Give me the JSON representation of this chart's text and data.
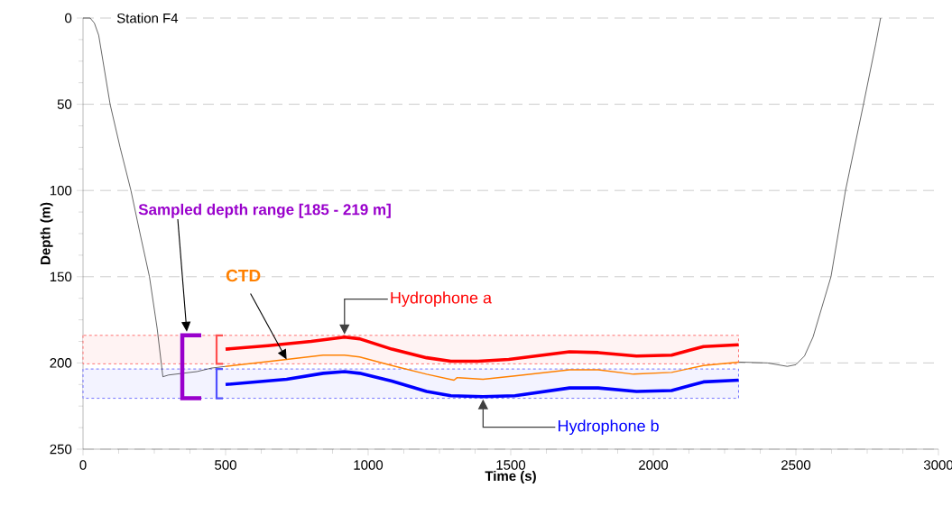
{
  "chart_data": {
    "type": "line",
    "xlabel": "Time (s)",
    "ylabel": "Depth (m)",
    "xlim": [
      0,
      3000
    ],
    "ylim": [
      250,
      0
    ],
    "xticks": [
      0,
      500,
      1000,
      1500,
      2000,
      2500,
      3000
    ],
    "yticks": [
      0,
      50,
      100,
      150,
      200,
      250
    ],
    "grid": "y",
    "series": [
      {
        "color": "#000000",
        "x": [
          0,
          25,
          40,
          55,
          70,
          95,
          130,
          168,
          200,
          233,
          260,
          280,
          300,
          400,
          450,
          500,
          1400,
          2300,
          2400,
          2470,
          2500,
          2530,
          2560,
          2623,
          2674,
          2737,
          2780,
          2797
        ],
        "values": [
          0,
          0,
          3,
          10,
          25,
          50,
          75,
          100,
          125,
          150,
          180,
          208,
          207,
          205,
          203,
          202,
          null,
          199.5,
          200,
          202,
          201,
          196,
          185,
          150,
          100,
          50,
          15,
          0
        ]
      },
      {
        "name": "CTD",
        "color": "#ff8000",
        "x": [
          500,
          714,
          842,
          917,
          970,
          1083,
          1205,
          1301,
          1312,
          1403,
          1515,
          1706,
          1807,
          1930,
          2064,
          2176,
          2299
        ],
        "values": [
          202,
          198,
          195.5,
          195.5,
          196.5,
          201.5,
          206.5,
          210,
          208.5,
          209.5,
          207.5,
          204,
          204,
          206.5,
          205.5,
          201.5,
          199.5
        ]
      },
      {
        "name": "Hydrophone a",
        "color": "#ff0000",
        "x": [
          500,
          649,
          800,
          917,
          970,
          1083,
          1205,
          1290,
          1385,
          1493,
          1706,
          1807,
          1941,
          2064,
          2176,
          2299
        ],
        "values": [
          192,
          190,
          187.5,
          185,
          186,
          192,
          197,
          199,
          199,
          198,
          193.5,
          194,
          196,
          195.5,
          190.5,
          189.5
        ]
      },
      {
        "name": "Hydrophone b",
        "color": "#0000ff",
        "x": [
          500,
          714,
          842,
          917,
          970,
          1083,
          1205,
          1290,
          1403,
          1515,
          1706,
          1807,
          1941,
          2064,
          2176,
          2299
        ],
        "values": [
          212.5,
          209.5,
          206,
          205,
          206,
          210.5,
          216.5,
          219,
          219.5,
          219,
          214.5,
          214.5,
          216.5,
          216,
          211,
          210
        ]
      }
    ],
    "bands": [
      {
        "axis": "y",
        "from": 184,
        "to": 200.5,
        "color": "#ff5050"
      },
      {
        "axis": "y",
        "from": 203.5,
        "to": 220.5,
        "color": "#5050ff"
      }
    ],
    "annotations": [
      "Station F4",
      "Sampled depth range [185 - 219 m]"
    ]
  }
}
